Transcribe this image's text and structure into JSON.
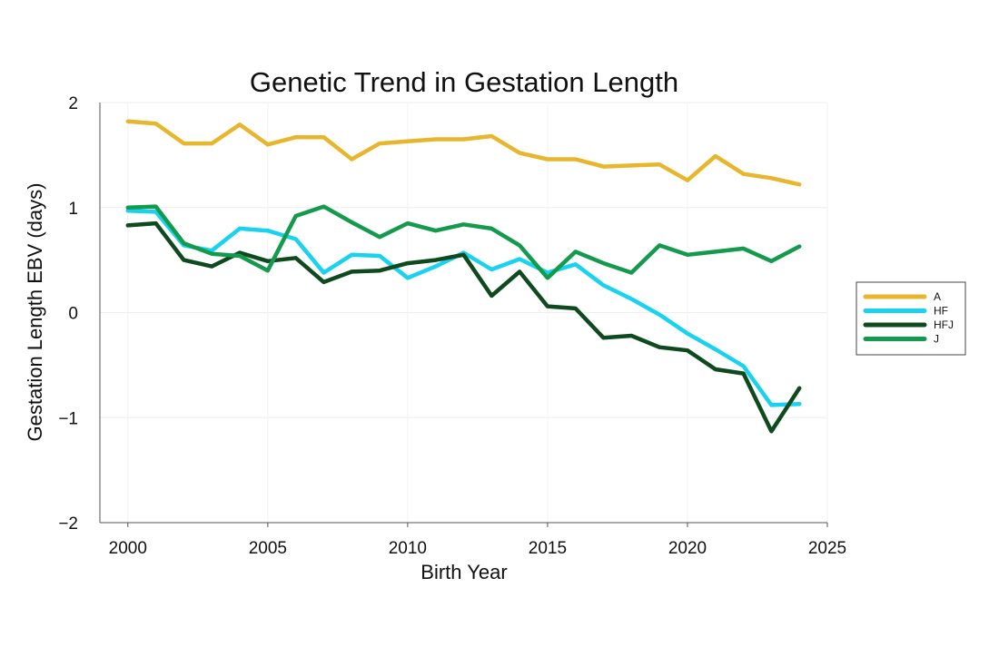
{
  "chart_data": {
    "type": "line",
    "title": "Genetic Trend in Gestation Length",
    "xlabel": "Birth Year",
    "ylabel": "Gestation Length EBV (days)",
    "xlim": [
      1999,
      2025
    ],
    "ylim": [
      -2,
      2
    ],
    "xticks": [
      2000,
      2005,
      2010,
      2015,
      2020,
      2025
    ],
    "yticks": [
      -2,
      -1,
      0,
      1,
      2
    ],
    "ytick_labels": [
      "−2",
      "−1",
      "0",
      "1",
      "2"
    ],
    "grid": true,
    "legend_position": "right",
    "x": [
      2000,
      2001,
      2002,
      2003,
      2004,
      2005,
      2006,
      2007,
      2008,
      2009,
      2010,
      2011,
      2012,
      2013,
      2014,
      2015,
      2016,
      2017,
      2018,
      2019,
      2020,
      2021,
      2022,
      2023,
      2024
    ],
    "series": [
      {
        "name": "A",
        "color": "#E8B62C",
        "values": [
          1.82,
          1.8,
          1.61,
          1.61,
          1.79,
          1.6,
          1.67,
          1.67,
          1.46,
          1.61,
          1.63,
          1.65,
          1.65,
          1.68,
          1.52,
          1.46,
          1.46,
          1.39,
          1.4,
          1.41,
          1.26,
          1.49,
          1.32,
          1.28,
          1.22
        ]
      },
      {
        "name": "HF",
        "color": "#18D2F0",
        "values": [
          0.97,
          0.96,
          0.64,
          0.59,
          0.8,
          0.78,
          0.7,
          0.38,
          0.55,
          0.54,
          0.33,
          0.44,
          0.57,
          0.41,
          0.51,
          0.38,
          0.46,
          0.26,
          0.13,
          -0.02,
          -0.2,
          -0.35,
          -0.51,
          -0.88,
          -0.87
        ]
      },
      {
        "name": "HFJ",
        "color": "#0E4A1E",
        "values": [
          0.83,
          0.85,
          0.5,
          0.44,
          0.57,
          0.49,
          0.52,
          0.29,
          0.39,
          0.4,
          0.47,
          0.5,
          0.55,
          0.16,
          0.39,
          0.06,
          0.04,
          -0.24,
          -0.22,
          -0.33,
          -0.36,
          -0.54,
          -0.58,
          -1.13,
          -0.72
        ]
      },
      {
        "name": "J",
        "color": "#139A4C",
        "values": [
          1.0,
          1.01,
          0.66,
          0.56,
          0.54,
          0.4,
          0.92,
          1.01,
          0.86,
          0.72,
          0.85,
          0.78,
          0.84,
          0.8,
          0.64,
          0.33,
          0.58,
          0.47,
          0.38,
          0.64,
          0.55,
          0.58,
          0.61,
          0.49,
          0.63
        ]
      }
    ]
  }
}
